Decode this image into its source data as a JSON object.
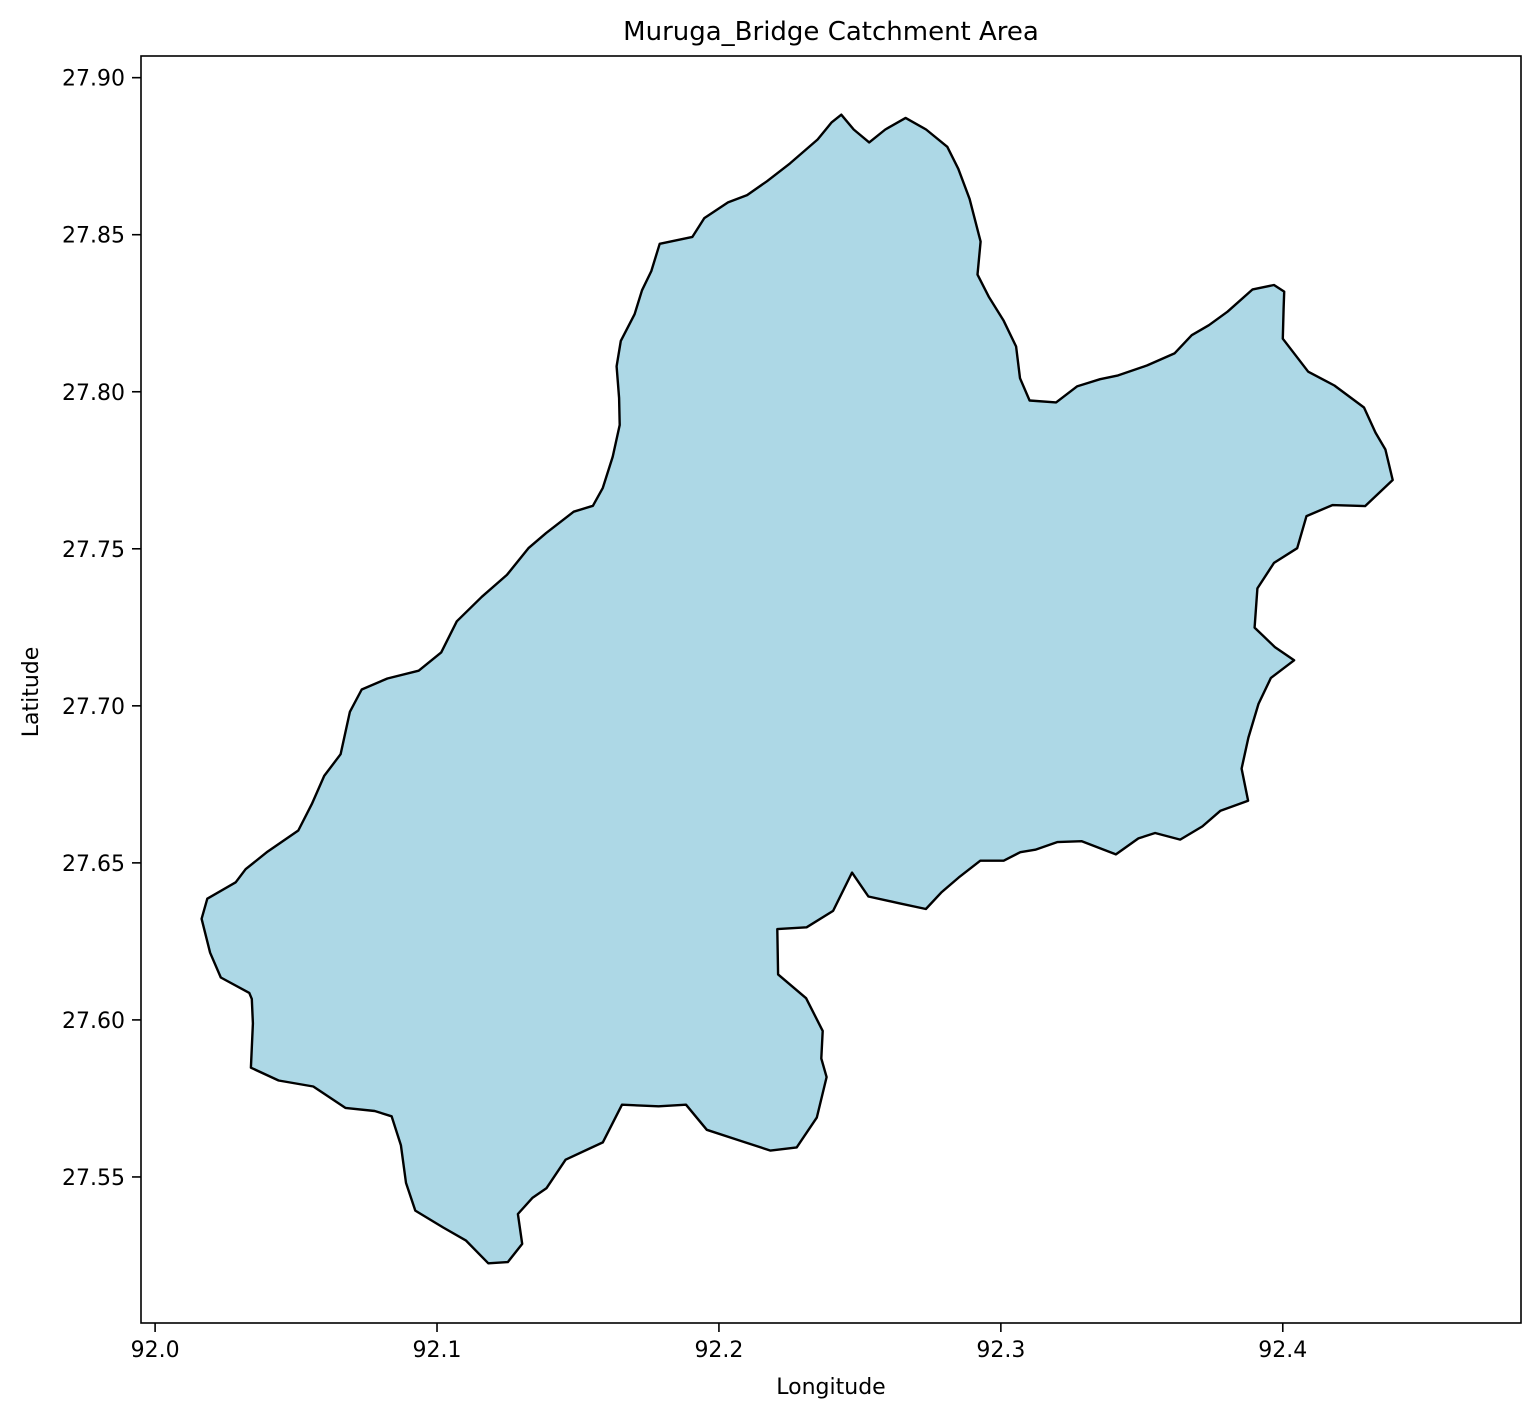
{
  "chart_data": {
    "type": "map",
    "title": "Muruga_Bridge Catchment Area",
    "xlabel": "Longitude",
    "ylabel": "Latitude",
    "xlim": [
      91.995,
      92.4845
    ],
    "ylim": [
      27.5035,
      27.9069
    ],
    "xticks": [
      92.0,
      92.1,
      92.2,
      92.3,
      92.4
    ],
    "xtick_labels": [
      "92.0",
      "92.1",
      "92.2",
      "92.3",
      "92.4"
    ],
    "yticks": [
      27.55,
      27.6,
      27.65,
      27.7,
      27.75,
      27.8,
      27.85,
      27.9
    ],
    "ytick_labels": [
      "27.55",
      "27.60",
      "27.65",
      "27.70",
      "27.75",
      "27.80",
      "27.85",
      "27.90"
    ],
    "grid": false,
    "fill_color": "#add8e6",
    "edge_color": "#000000",
    "polygon": [
      [
        92.2434,
        27.8882
      ],
      [
        92.2478,
        27.8835
      ],
      [
        92.2533,
        27.8794
      ],
      [
        92.259,
        27.8835
      ],
      [
        92.2662,
        27.8872
      ],
      [
        92.2735,
        27.8835
      ],
      [
        92.281,
        27.878
      ],
      [
        92.2849,
        27.871
      ],
      [
        92.2889,
        27.8614
      ],
      [
        92.2928,
        27.8478
      ],
      [
        92.2917,
        27.8373
      ],
      [
        92.2957,
        27.8303
      ],
      [
        92.301,
        27.8226
      ],
      [
        92.3054,
        27.8144
      ],
      [
        92.3068,
        27.8043
      ],
      [
        92.3102,
        27.7972
      ],
      [
        92.3196,
        27.7966
      ],
      [
        92.327,
        27.8017
      ],
      [
        92.3352,
        27.804
      ],
      [
        92.3416,
        27.8052
      ],
      [
        92.3519,
        27.8084
      ],
      [
        92.3616,
        27.8122
      ],
      [
        92.3677,
        27.818
      ],
      [
        92.3738,
        27.8212
      ],
      [
        92.3804,
        27.8255
      ],
      [
        92.3893,
        27.8326
      ],
      [
        92.3969,
        27.834
      ],
      [
        92.4005,
        27.8319
      ],
      [
        92.4003,
        27.8264
      ],
      [
        92.4,
        27.8169
      ],
      [
        92.409,
        27.8064
      ],
      [
        92.4183,
        27.802
      ],
      [
        92.4288,
        27.795
      ],
      [
        92.4329,
        27.787
      ],
      [
        92.4364,
        27.7816
      ],
      [
        92.439,
        27.7719
      ],
      [
        92.4292,
        27.7636
      ],
      [
        92.4176,
        27.7639
      ],
      [
        92.4084,
        27.7604
      ],
      [
        92.4051,
        27.7502
      ],
      [
        92.3969,
        27.7455
      ],
      [
        92.391,
        27.7374
      ],
      [
        92.39,
        27.7249
      ],
      [
        92.3972,
        27.7187
      ],
      [
        92.404,
        27.7145
      ],
      [
        92.3958,
        27.7089
      ],
      [
        92.3914,
        27.7006
      ],
      [
        92.3878,
        27.6899
      ],
      [
        92.3854,
        27.68
      ],
      [
        92.3877,
        27.6698
      ],
      [
        92.3779,
        27.6666
      ],
      [
        92.3715,
        27.6616
      ],
      [
        92.3636,
        27.6574
      ],
      [
        92.3547,
        27.6595
      ],
      [
        92.3488,
        27.6578
      ],
      [
        92.3408,
        27.6527
      ],
      [
        92.3287,
        27.6569
      ],
      [
        92.32,
        27.6566
      ],
      [
        92.3122,
        27.6542
      ],
      [
        92.3069,
        27.6534
      ],
      [
        92.301,
        27.6507
      ],
      [
        92.2927,
        27.6507
      ],
      [
        92.285,
        27.6453
      ],
      [
        92.279,
        27.6407
      ],
      [
        92.2734,
        27.6353
      ],
      [
        92.2642,
        27.6371
      ],
      [
        92.253,
        27.6393
      ],
      [
        92.2472,
        27.6469
      ],
      [
        92.2405,
        27.6347
      ],
      [
        92.2311,
        27.6295
      ],
      [
        92.2207,
        27.6289
      ],
      [
        92.221,
        27.6145
      ],
      [
        92.2309,
        27.6069
      ],
      [
        92.2368,
        27.5965
      ],
      [
        92.2363,
        27.5877
      ],
      [
        92.2382,
        27.5818
      ],
      [
        92.2347,
        27.5689
      ],
      [
        92.2276,
        27.5594
      ],
      [
        92.2183,
        27.5584
      ],
      [
        92.2073,
        27.5616
      ],
      [
        92.1957,
        27.565
      ],
      [
        92.1883,
        27.573
      ],
      [
        92.1786,
        27.5725
      ],
      [
        92.1656,
        27.573
      ],
      [
        92.1588,
        27.561
      ],
      [
        92.1544,
        27.5592
      ],
      [
        92.1456,
        27.5555
      ],
      [
        92.1388,
        27.5464
      ],
      [
        92.1339,
        27.5434
      ],
      [
        92.1287,
        27.5382
      ],
      [
        92.1302,
        27.5287
      ],
      [
        92.1251,
        27.5229
      ],
      [
        92.1182,
        27.5225
      ],
      [
        92.1102,
        27.5298
      ],
      [
        92.1022,
        27.5339
      ],
      [
        92.0923,
        27.5393
      ],
      [
        92.089,
        27.5481
      ],
      [
        92.0872,
        27.5601
      ],
      [
        92.0839,
        27.5693
      ],
      [
        92.0779,
        27.571
      ],
      [
        92.0675,
        27.572
      ],
      [
        92.0561,
        27.5788
      ],
      [
        92.0438,
        27.5807
      ],
      [
        92.034,
        27.5848
      ],
      [
        92.0347,
        27.5989
      ],
      [
        92.0343,
        27.6067
      ],
      [
        92.0334,
        27.6086
      ],
      [
        92.0233,
        27.6135
      ],
      [
        92.0195,
        27.6214
      ],
      [
        92.0165,
        27.6322
      ],
      [
        92.0185,
        27.6386
      ],
      [
        92.0286,
        27.6438
      ],
      [
        92.0321,
        27.648
      ],
      [
        92.0399,
        27.6536
      ],
      [
        92.0508,
        27.6603
      ],
      [
        92.0556,
        27.6687
      ],
      [
        92.06,
        27.6777
      ],
      [
        92.0658,
        27.6846
      ],
      [
        92.0691,
        27.6981
      ],
      [
        92.0733,
        27.7052
      ],
      [
        92.0824,
        27.7087
      ],
      [
        92.0935,
        27.7112
      ],
      [
        92.1015,
        27.717
      ],
      [
        92.107,
        27.7269
      ],
      [
        92.1159,
        27.7347
      ],
      [
        92.1248,
        27.7417
      ],
      [
        92.1324,
        27.7502
      ],
      [
        92.1387,
        27.755
      ],
      [
        92.1485,
        27.7618
      ],
      [
        92.1553,
        27.7637
      ],
      [
        92.1588,
        27.7694
      ],
      [
        92.1623,
        27.7793
      ],
      [
        92.1648,
        27.7894
      ],
      [
        92.1646,
        27.798
      ],
      [
        92.1637,
        27.8081
      ],
      [
        92.1652,
        27.8162
      ],
      [
        92.1701,
        27.8247
      ],
      [
        92.1727,
        27.8323
      ],
      [
        92.176,
        27.8384
      ],
      [
        92.179,
        27.8471
      ],
      [
        92.1906,
        27.8493
      ],
      [
        92.1948,
        27.8553
      ],
      [
        92.2032,
        27.8603
      ],
      [
        92.21,
        27.8626
      ],
      [
        92.217,
        27.867
      ],
      [
        92.2252,
        27.8727
      ],
      [
        92.235,
        27.8803
      ],
      [
        92.24,
        27.8858
      ]
    ]
  }
}
